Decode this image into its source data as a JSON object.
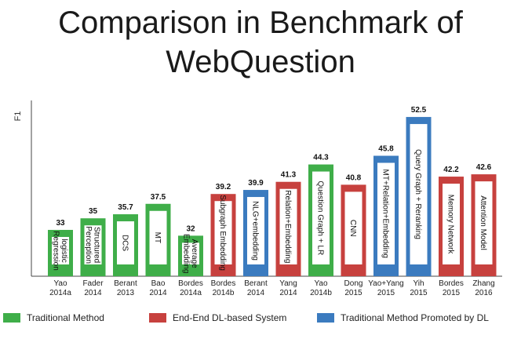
{
  "title": {
    "line1": "Comparison in Benchmark of",
    "line2": "WebQuestion"
  },
  "chart_data": {
    "type": "bar",
    "ylabel": "F1",
    "xlabel": "",
    "ylim": [
      25,
      54
    ],
    "grid": false,
    "legend_position": "bottom",
    "categories": [
      {
        "line1": "Yao",
        "line2": "2014a"
      },
      {
        "line1": "Fader",
        "line2": "2014"
      },
      {
        "line1": "Berant",
        "line2": "2013"
      },
      {
        "line1": "Bao",
        "line2": "2014"
      },
      {
        "line1": "Bordes",
        "line2": "2014a"
      },
      {
        "line1": "Bordes",
        "line2": "2014b"
      },
      {
        "line1": "Berant",
        "line2": "2014"
      },
      {
        "line1": "Yang",
        "line2": "2014"
      },
      {
        "line1": "Yao",
        "line2": "2014b"
      },
      {
        "line1": "Dong",
        "line2": "2015"
      },
      {
        "line1": "Yao+Yang",
        "line2": "2015"
      },
      {
        "line1": "Yih",
        "line2": "2015"
      },
      {
        "line1": "Bordes",
        "line2": "2015"
      },
      {
        "line1": "Zhang",
        "line2": "2016"
      }
    ],
    "values": [
      33,
      35,
      35.7,
      37.5,
      32,
      39.2,
      39.9,
      41.3,
      44.3,
      40.8,
      45.8,
      52.5,
      42.2,
      42.6
    ],
    "value_labels": [
      "33",
      "35",
      "35.7",
      "37.5",
      "32",
      "39.2",
      "39.9",
      "41.3",
      "44.3",
      "40.8",
      "45.8",
      "52.5",
      "42.2",
      "42.6"
    ],
    "methods": [
      [
        "logistic",
        "Regression"
      ],
      [
        "Structured",
        "Perception"
      ],
      [
        "DCS"
      ],
      [
        "MT"
      ],
      [
        "Average",
        "Embedding"
      ],
      [
        "Subgraph Embedding"
      ],
      [
        "NLG+embedding"
      ],
      [
        "Relation+Embedding"
      ],
      [
        "Question Graph + LR"
      ],
      [
        "CNN"
      ],
      [
        "MT+Relation+Embedding"
      ],
      [
        "Query Graph + Reranking"
      ],
      [
        "Memory Network"
      ],
      [
        "Attention Model"
      ]
    ],
    "groups": [
      "traditional",
      "traditional",
      "traditional",
      "traditional",
      "traditional",
      "end_end",
      "promoted",
      "end_end",
      "traditional",
      "end_end",
      "promoted",
      "promoted",
      "end_end",
      "end_end"
    ],
    "legend": [
      {
        "key": "traditional",
        "label": "Traditional Method",
        "color": "#3fae49"
      },
      {
        "key": "end_end",
        "label": "End-End DL-based System",
        "color": "#c7413e"
      },
      {
        "key": "promoted",
        "label": "Traditional Method Promoted by DL",
        "color": "#3b7bbf"
      }
    ]
  }
}
